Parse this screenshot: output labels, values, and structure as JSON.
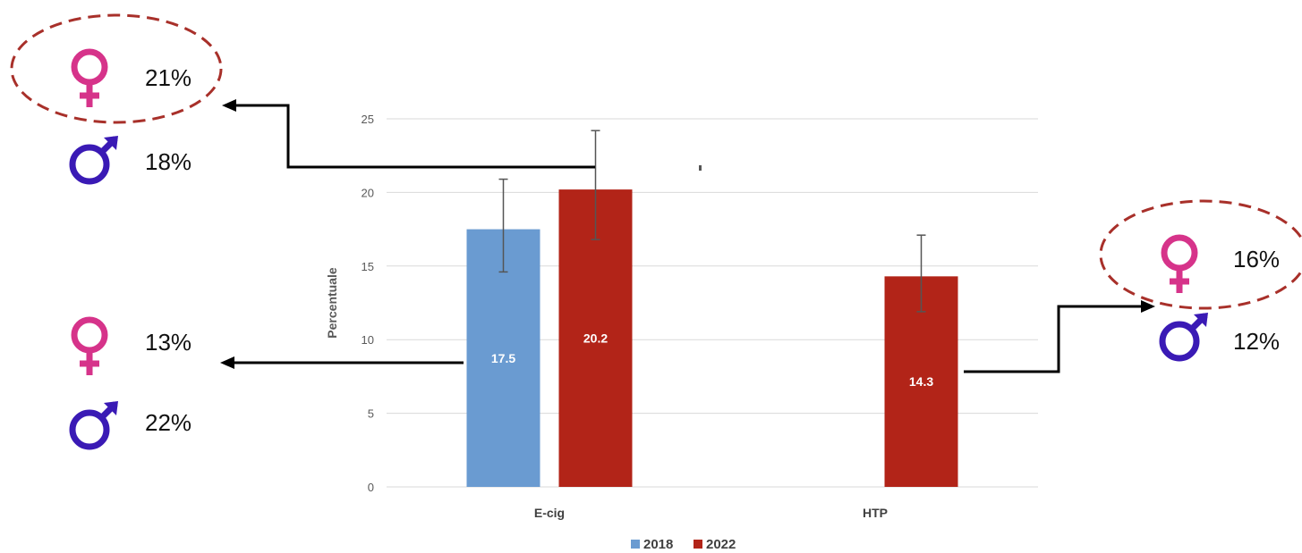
{
  "chart_data": {
    "type": "bar",
    "categories": [
      "E-cig",
      "HTP"
    ],
    "series": [
      {
        "name": "2018",
        "color": "#6a9bd1",
        "values": [
          17.5,
          null
        ],
        "error_low": [
          14.6,
          null
        ],
        "error_high": [
          20.9,
          null
        ]
      },
      {
        "name": "2022",
        "color": "#b22418",
        "values": [
          20.2,
          14.3
        ],
        "error_low": [
          16.8,
          11.9
        ],
        "error_high": [
          24.2,
          17.1
        ]
      }
    ],
    "data_labels": [
      "17.5",
      "20.2",
      "14.3"
    ],
    "ylabel": "Percentuale",
    "ylim": [
      0,
      25
    ],
    "yticks": [
      "0",
      "5",
      "10",
      "15",
      "20",
      "25"
    ],
    "grid": true,
    "legend_position": "bottom"
  },
  "annotations": {
    "ecig_2022": {
      "female": "21%",
      "male": "18%",
      "highlight": "female"
    },
    "ecig_2018": {
      "female": "13%",
      "male": "22%"
    },
    "htp_2022": {
      "female": "16%",
      "male": "12%",
      "highlight": "female"
    }
  },
  "colors": {
    "female_symbol": "#d6338a",
    "male_symbol": "#3a1ab5",
    "highlight_ellipse": "#a8302a",
    "arrow": "#000000"
  },
  "icons": {
    "female": "female-symbol-icon",
    "male": "male-symbol-icon"
  }
}
